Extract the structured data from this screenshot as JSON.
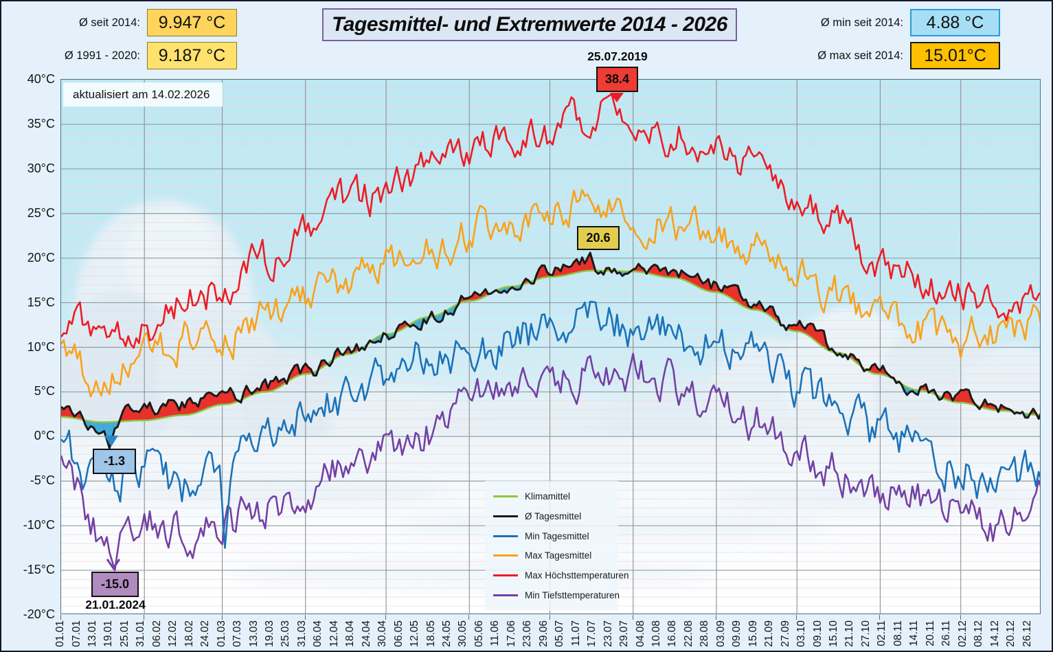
{
  "header": {
    "avg_since_2014_label": "Ø seit 2014:",
    "avg_since_2014_value": "9.947 °C",
    "avg_1991_2020_label": "Ø 1991 - 2020:",
    "avg_1991_2020_value": "9.187 °C",
    "title": "Tagesmittel- und Extremwerte 2014 - 2026",
    "avg_min_label": "Ø min seit 2014:",
    "avg_min_value": "4.88  °C",
    "avg_max_label": "Ø max seit 2014:",
    "avg_max_value": "15.01°C"
  },
  "updated": {
    "text": "aktualisiert am  14.02.2026"
  },
  "annotations": {
    "record_high": {
      "date": "25.07.2019",
      "value": "38.4"
    },
    "max_daily_mean": {
      "value": "20.6"
    },
    "min_daily_mean": {
      "value": "-1.3"
    },
    "record_low": {
      "value": "-15.0",
      "date": "21.01.2024"
    }
  },
  "colors": {
    "gold_box_1": "#FFD45C",
    "gold_box_2": "#FFE26E",
    "min_box_bg": "#A6DFF5",
    "min_box_border": "#2E9BD6",
    "max_box_bg": "#FFC000",
    "record_high_box": "#EE3B33",
    "max_mean_box": "#E2CD4F",
    "min_mean_box": "#9FC5E8",
    "record_low_box": "#B08BC0",
    "fill_above": "#E8312B",
    "fill_below": "#41ACDC"
  },
  "chart_data": {
    "type": "line",
    "title": "Tagesmittel- und Extremwerte 2014 - 2026",
    "y_axis": {
      "unit": "°C",
      "min": -20,
      "max": 40,
      "step": 5,
      "tick_labels": [
        "40°C",
        "35°C",
        "30°C",
        "25°C",
        "20°C",
        "15°C",
        "10°C",
        "5°C",
        "0°C",
        "-5°C",
        "-10°C",
        "-15°C",
        "-20°C"
      ]
    },
    "x_axis": {
      "days_in_year": 366,
      "month_start_days": [
        0,
        31,
        60,
        91,
        121,
        152,
        182,
        213,
        244,
        274,
        305,
        335
      ],
      "tick_labels": [
        "01.01",
        "07.01",
        "13.01",
        "19.01",
        "25.01",
        "31.01",
        "06.02",
        "12.02",
        "18.02",
        "24.02",
        "01.03",
        "07.03",
        "13.03",
        "19.03",
        "25.03",
        "31.03",
        "06.04",
        "12.04",
        "18.04",
        "24.04",
        "30.04",
        "06.05",
        "12.05",
        "18.05",
        "24.05",
        "30.05",
        "05.06",
        "11.06",
        "17.06",
        "23.06",
        "29.06",
        "05.07",
        "11.07",
        "17.07",
        "23.07",
        "29.07",
        "04.08",
        "10.08",
        "16.08",
        "22.08",
        "28.08",
        "03.09",
        "09.09",
        "15.09",
        "21.09",
        "27.09",
        "03.10",
        "09.10",
        "15.10",
        "21.10",
        "27.10",
        "02.11",
        "08.11",
        "14.11",
        "20.11",
        "26.11",
        "02.12",
        "08.12",
        "14.12",
        "20.12",
        "26.12"
      ]
    },
    "legend_position": "center-bottom",
    "grid": true,
    "series": [
      {
        "name": "Klimamittel",
        "color": "#8CC63E",
        "anchors": [
          2.2,
          1.6,
          1.8,
          2.4,
          3.6,
          5.0,
          7.0,
          9.2,
          11.5,
          13.4,
          15.2,
          16.8,
          17.9,
          18.6,
          18.5,
          17.8,
          16.2,
          14.2,
          11.8,
          9.4,
          7.0,
          5.2,
          3.8,
          2.9,
          2.4
        ]
      },
      {
        "name": "Ø Tagesmittel",
        "color": "#1A1A1A",
        "anchors": [
          3.4,
          1.2,
          3.2,
          3.5,
          4.4,
          5.6,
          7.2,
          9.4,
          11.6,
          13.2,
          15.4,
          17.2,
          18.4,
          19.6,
          18.9,
          18.3,
          16.8,
          14.8,
          12.3,
          9.9,
          7.4,
          5.3,
          4.4,
          3.4,
          2.2
        ]
      },
      {
        "name": "Min Tagesmittel",
        "color": "#1B72B8",
        "anchors": [
          -1.0,
          -6.0,
          -3.5,
          -5.5,
          -3.5,
          1.0,
          3.0,
          4.5,
          7.0,
          9.0,
          9.5,
          11.0,
          12.0,
          13.0,
          12.5,
          11.5,
          10.0,
          8.5,
          5.5,
          3.0,
          0.5,
          -1.5,
          -3.5,
          -5.5,
          -4.5
        ]
      },
      {
        "name": "Max Tagesmittel",
        "color": "#F9A11B",
        "anchors": [
          9.5,
          5.5,
          8.5,
          11.0,
          11.5,
          13.5,
          15.0,
          17.0,
          19.0,
          20.5,
          23.0,
          24.5,
          25.0,
          25.5,
          24.5,
          24.0,
          22.5,
          21.0,
          18.0,
          16.0,
          13.5,
          12.0,
          11.0,
          11.5,
          13.5
        ]
      },
      {
        "name": "Max Höchsttemperaturen",
        "color": "#EC1C24",
        "anchors": [
          12.0,
          13.5,
          11.5,
          15.0,
          16.5,
          19.5,
          23.0,
          26.0,
          27.5,
          29.5,
          32.0,
          33.5,
          34.0,
          36.0,
          35.0,
          34.0,
          32.5,
          30.0,
          27.0,
          24.0,
          20.0,
          17.5,
          15.5,
          14.0,
          15.5
        ]
      },
      {
        "name": "Min Tiefsttemperaturen",
        "color": "#7440A4",
        "anchors": [
          -4.0,
          -11.0,
          -9.0,
          -10.5,
          -10.0,
          -8.0,
          -5.5,
          -3.0,
          -1.5,
          0.5,
          3.5,
          5.0,
          6.5,
          7.5,
          7.0,
          6.0,
          4.0,
          2.0,
          -1.0,
          -3.5,
          -5.5,
          -7.0,
          -8.5,
          -10.0,
          -8.0
        ]
      }
    ],
    "extremes": [
      {
        "series": "Max Höchsttemperaturen",
        "day": 205,
        "value": 38.4,
        "date": "25.07.2019"
      },
      {
        "series": "Ø Tagesmittel",
        "day": 197,
        "value": 20.6
      },
      {
        "series": "Ø Tagesmittel",
        "day": 18,
        "value": -1.3
      },
      {
        "series": "Min Tiefsttemperaturen",
        "day": 20,
        "value": -15.0,
        "date": "21.01.2024"
      },
      {
        "series": "Min Tagesmittel",
        "day": 61,
        "value": -12.5
      }
    ],
    "fills": {
      "between": [
        "Ø Tagesmittel",
        "Klimamittel"
      ],
      "above_color": "#E8312B",
      "below_color": "#41ACDC"
    },
    "stats": {
      "mean_since_2014_c": 9.947,
      "mean_1991_2020_c": 9.187,
      "mean_min_since_2014_c": 4.88,
      "mean_max_since_2014_c": 15.01
    }
  }
}
